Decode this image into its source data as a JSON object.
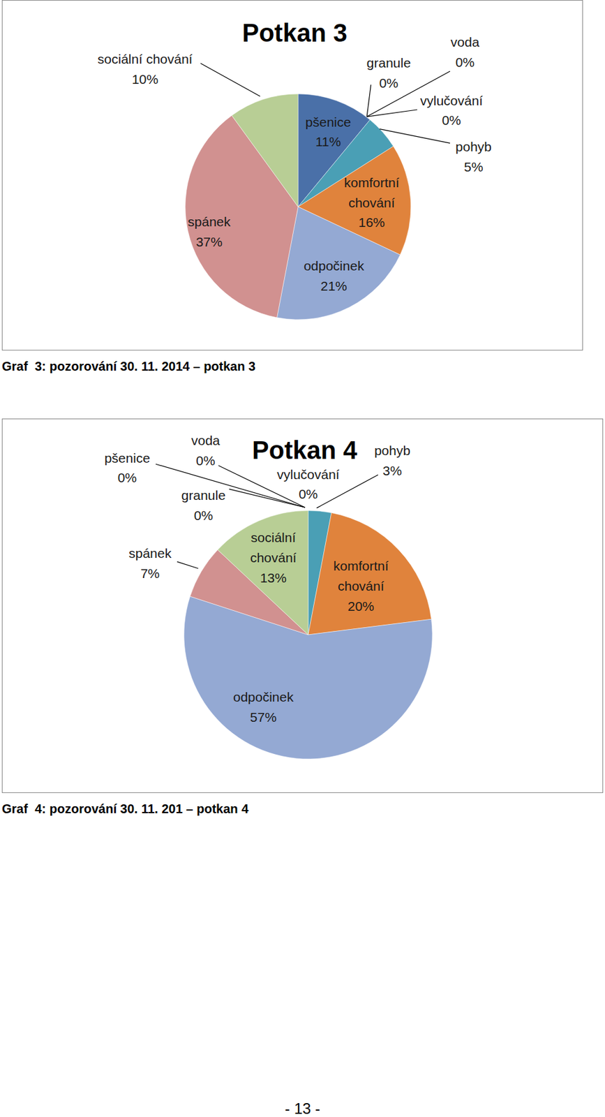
{
  "chart_data": [
    {
      "type": "pie",
      "title": "Potkan 3",
      "caption": "Graf  3: pozorování 30. 11. 2014 – potkan 3",
      "categories": [
        "pšenice",
        "granule",
        "voda",
        "vylučování",
        "pohyb",
        "komfortní chování",
        "odpočinek",
        "spánek",
        "sociální chování"
      ],
      "values": [
        11,
        0,
        0,
        0,
        5,
        16,
        21,
        37,
        10
      ],
      "value_labels": [
        "11%",
        "0%",
        "0%",
        "0%",
        "5%",
        "16%",
        "21%",
        "37%",
        "10%"
      ],
      "colors": [
        "#4a70a8",
        "#bd4f4c",
        "#9ab95a",
        "#7f64a0",
        "#4a9fb5",
        "#e0833c",
        "#94a9d3",
        "#d19190",
        "#b8ce95"
      ],
      "data_labels": true
    },
    {
      "type": "pie",
      "title": "Potkan 4",
      "caption": "Graf  4: pozorování 30. 11. 201 – potkan 4",
      "categories": [
        "pšenice",
        "granule",
        "voda",
        "vylučování",
        "pohyb",
        "komfortní chování",
        "odpočinek",
        "spánek",
        "sociální chování"
      ],
      "values": [
        0,
        0,
        0,
        0,
        3,
        20,
        57,
        7,
        13
      ],
      "value_labels": [
        "0%",
        "0%",
        "0%",
        "0%",
        "3%",
        "20%",
        "57%",
        "7%",
        "13%"
      ],
      "colors": [
        "#4a70a8",
        "#bd4f4c",
        "#9ab95a",
        "#7f64a0",
        "#4a9fb5",
        "#e0833c",
        "#94a9d3",
        "#d19190",
        "#b8ce95"
      ],
      "data_labels": true
    }
  ],
  "page_number": "- 13 -"
}
